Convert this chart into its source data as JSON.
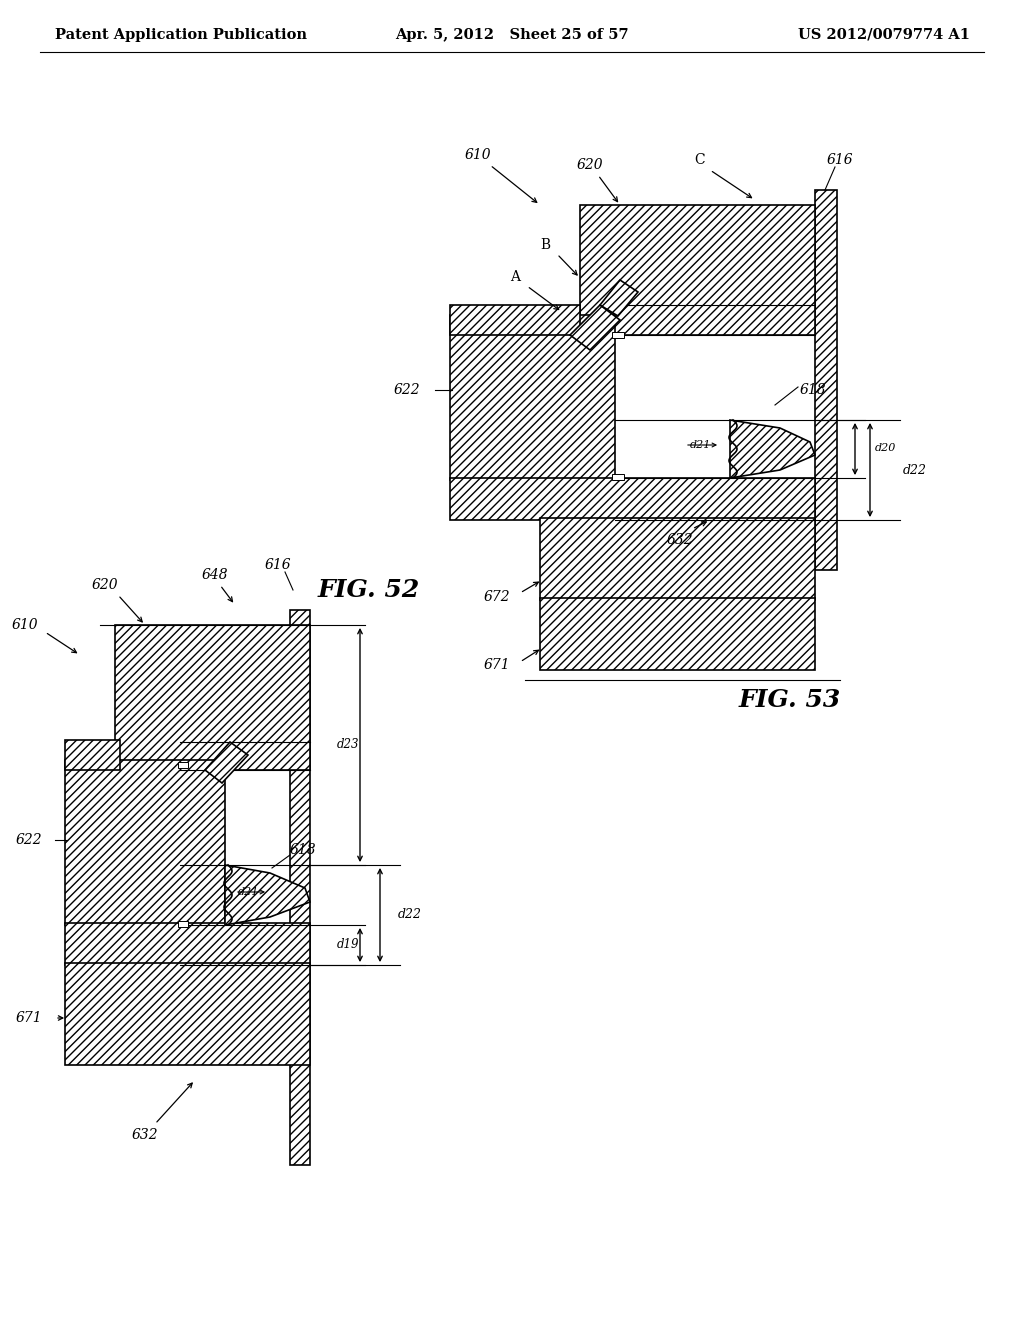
{
  "bg_color": "#ffffff",
  "lc": "#000000",
  "header_left": "Patent Application Publication",
  "header_center": "Apr. 5, 2012   Sheet 25 of 57",
  "header_right": "US 2012/0079774 A1",
  "header_fontsize": 10.5,
  "fig52_label": "FIG. 52",
  "fig53_label": "FIG. 53",
  "hatch": "////"
}
